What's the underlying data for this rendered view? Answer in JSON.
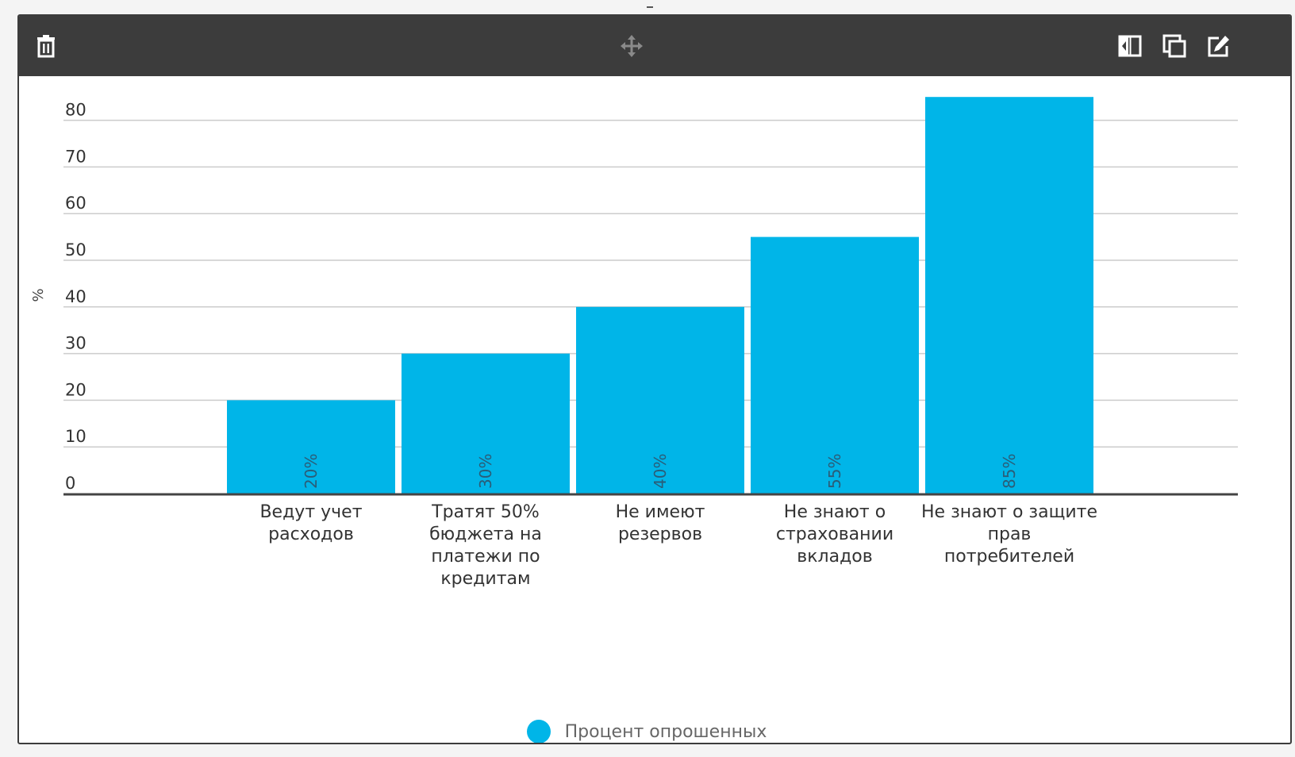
{
  "toolbar": {
    "icons": [
      "trash-icon",
      "move-icon",
      "split-view-icon",
      "duplicate-icon",
      "edit-icon"
    ]
  },
  "colors": {
    "toolbar_bg": "#3c3c3c",
    "bar": "#00b5e8",
    "grid": "#cccccc",
    "axis": "#444444"
  },
  "chart_data": {
    "type": "bar",
    "ylabel": "%",
    "ylim": [
      0,
      80
    ],
    "yticks": [
      0,
      10,
      20,
      30,
      40,
      50,
      60,
      70,
      80
    ],
    "grid": true,
    "legend_position": "bottom",
    "categories": [
      [
        "Ведут учет",
        "расходов"
      ],
      [
        "Тратят 50%",
        "бюджета на",
        "платежи по",
        "кредитам"
      ],
      [
        "Не имеют",
        "резервов"
      ],
      [
        "Не знают о",
        "страховании",
        "вкладов"
      ],
      [
        "Не знают о защите",
        "прав",
        "потребителей"
      ]
    ],
    "series": [
      {
        "name": "Процент опрошенных",
        "values": [
          20,
          30,
          40,
          55,
          85
        ],
        "data_labels": [
          "20%",
          "30%",
          "40%",
          "55%",
          "85%"
        ]
      }
    ]
  }
}
